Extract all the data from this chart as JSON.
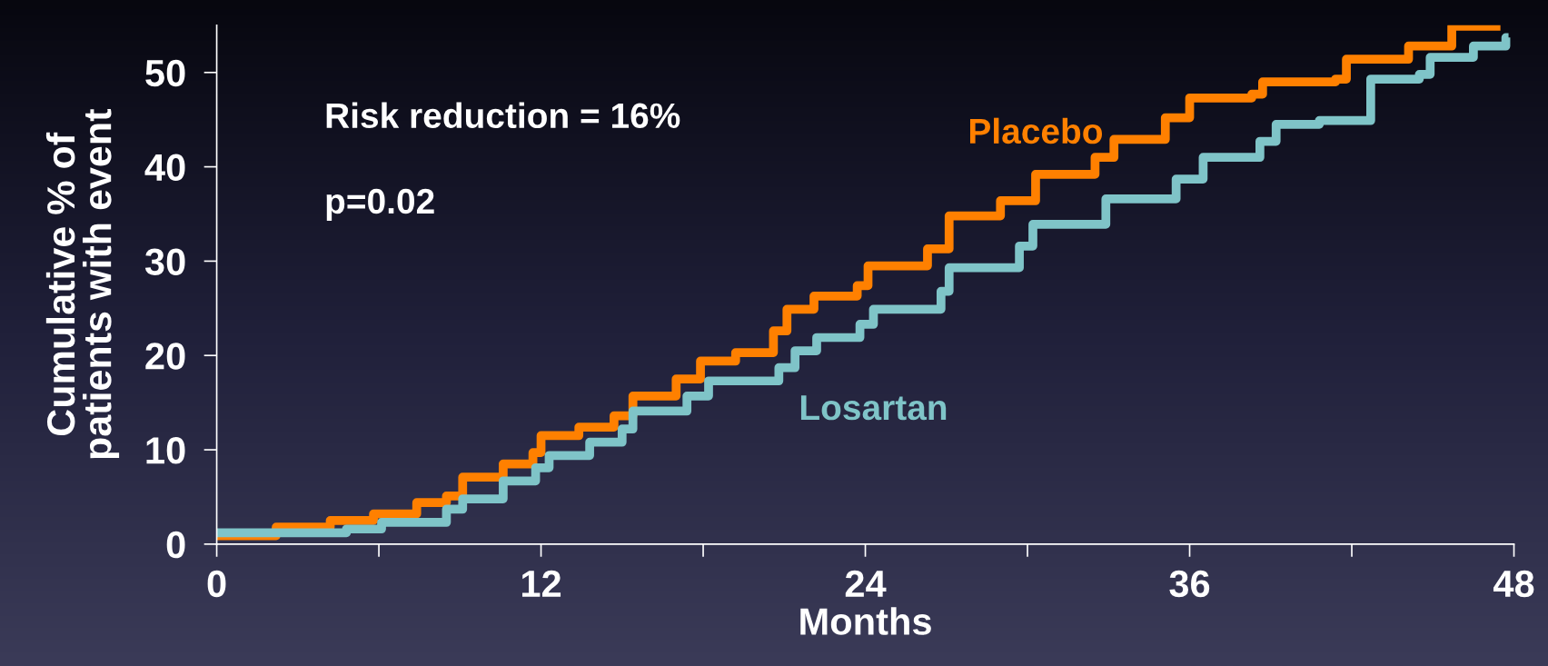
{
  "chart_data": {
    "type": "step",
    "xlabel": "Months",
    "ylabel": "Cumulative % of\npatients with event",
    "xlim": [
      0,
      48
    ],
    "ylim": [
      0,
      55
    ],
    "xticks": [
      0,
      {
        "value": 6,
        "label": null
      },
      12,
      {
        "value": 18,
        "label": null
      },
      24,
      {
        "value": 30,
        "label": null
      },
      36,
      {
        "value": 42,
        "label": null
      },
      48
    ],
    "yticks": [
      0,
      {
        "value": 10,
        "label": "10"
      },
      20,
      30,
      40,
      50
    ],
    "grid": false,
    "legend": false,
    "line_style": "solid",
    "marker": "none",
    "annotations": [
      "Risk reduction = 16%",
      "p=0.02"
    ],
    "series": [
      {
        "name": "Placebo",
        "color": "#ff8000",
        "x": [
          0,
          2.2,
          4.2,
          5.8,
          7.4,
          8.5,
          9.1,
          10.6,
          11.7,
          12.0,
          13.4,
          14.7,
          15.4,
          17.0,
          17.9,
          19.2,
          20.6,
          21.1,
          22.1,
          23.7,
          24.1,
          26.3,
          27.1,
          29.0,
          30.3,
          32.5,
          33.2,
          35.1,
          36.0,
          38.3,
          38.7,
          41.4,
          41.8,
          44.1,
          45.7,
          47.5
        ],
        "values": [
          0.9,
          1.8,
          2.5,
          3.2,
          4.4,
          5.1,
          7.1,
          8.5,
          9.7,
          11.5,
          12.4,
          13.6,
          15.7,
          17.5,
          19.4,
          20.3,
          22.6,
          24.9,
          26.3,
          27.4,
          29.5,
          31.3,
          34.8,
          36.4,
          39.2,
          41.0,
          42.9,
          45.2,
          47.3,
          47.7,
          49.0,
          49.3,
          51.4,
          52.8,
          54.9,
          54.9
        ]
      },
      {
        "name": "Losartan",
        "color": "#7fc4c8",
        "x": [
          0,
          2.6,
          4.8,
          6.1,
          8.5,
          9.1,
          10.6,
          11.8,
          12.3,
          13.8,
          15.0,
          15.4,
          17.4,
          18.2,
          20.8,
          21.4,
          22.2,
          23.8,
          24.3,
          26.8,
          27.1,
          29.7,
          30.2,
          32.9,
          35.5,
          36.5,
          38.6,
          39.2,
          40.8,
          42.7,
          44.5,
          44.9,
          46.5,
          47.7,
          47.8
        ],
        "values": [
          1.2,
          1.2,
          1.6,
          2.3,
          3.7,
          4.8,
          6.7,
          8.1,
          9.4,
          10.8,
          12.2,
          14.1,
          15.7,
          17.3,
          18.7,
          20.5,
          21.9,
          23.3,
          24.9,
          26.8,
          29.3,
          31.6,
          33.9,
          36.6,
          38.7,
          41.0,
          42.7,
          44.5,
          44.9,
          49.3,
          49.8,
          51.6,
          52.8,
          53.7,
          53.7
        ]
      }
    ]
  }
}
